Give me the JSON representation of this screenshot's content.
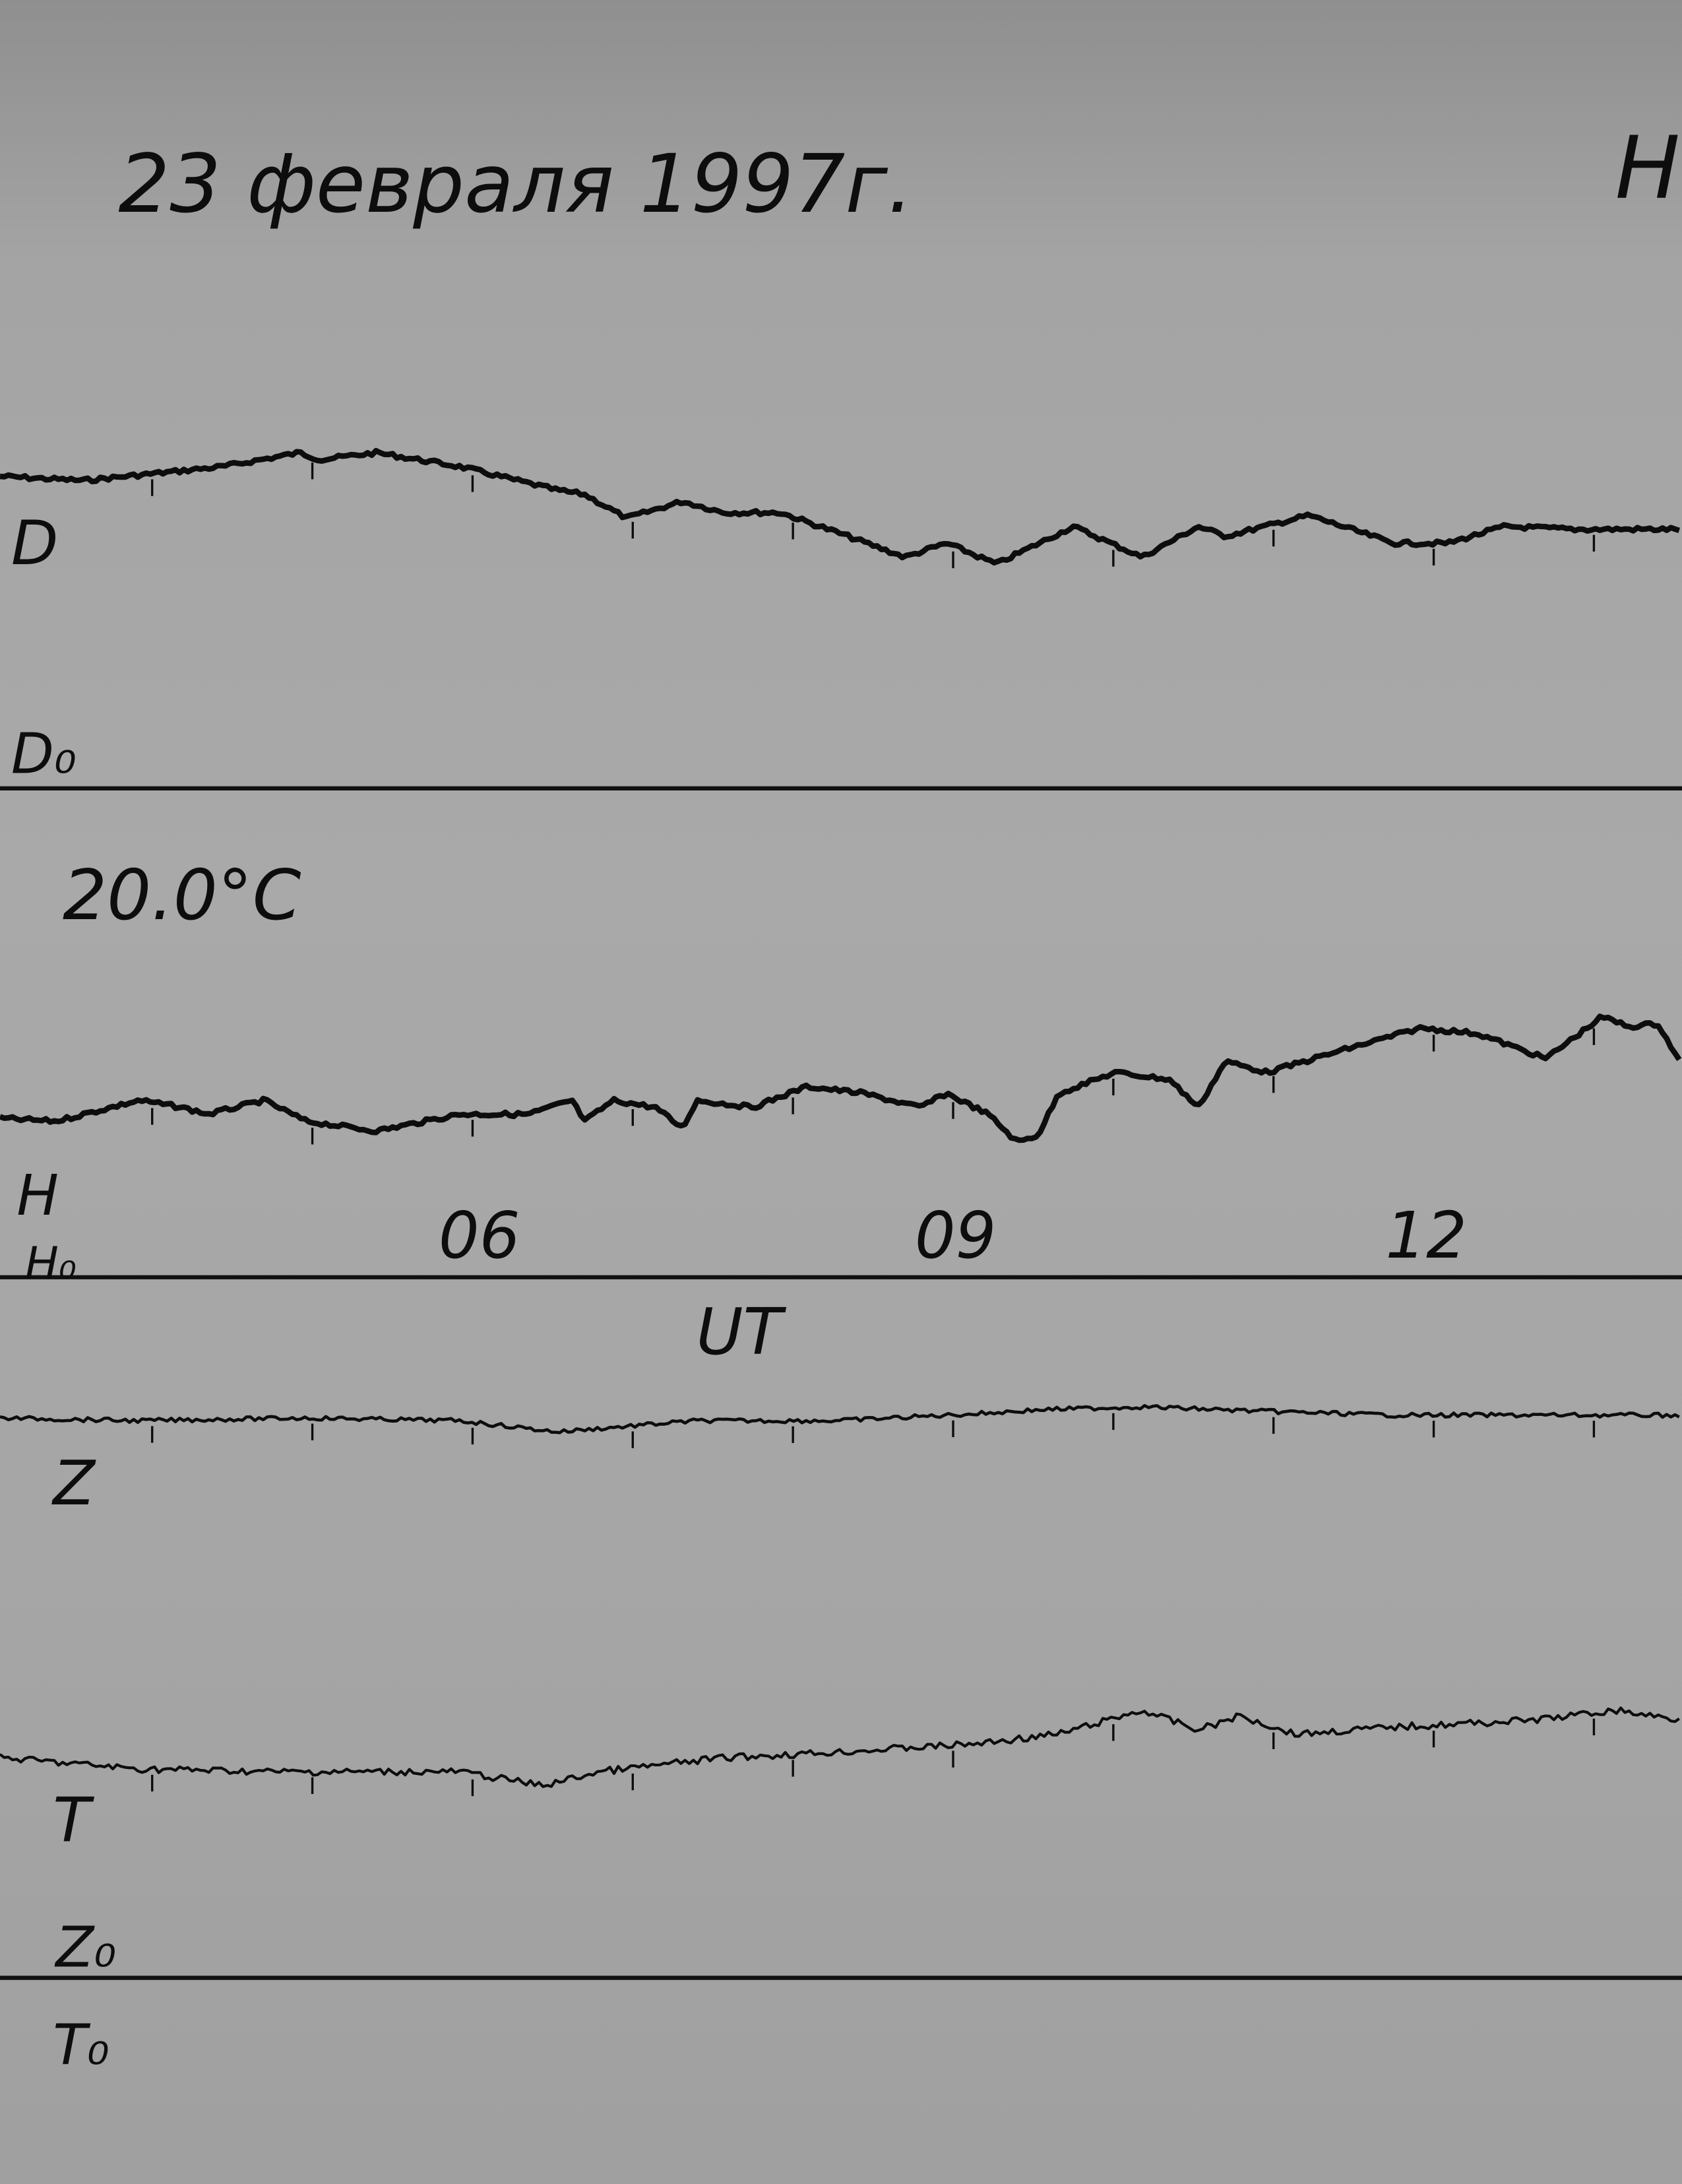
{
  "title": "23 февраля 1997г.",
  "corner_mark": "Н",
  "temperature": "20.0°C",
  "labels": {
    "D": "D",
    "D0": "D₀",
    "H": "H",
    "H0": "H₀",
    "Z": "Z",
    "T": "T",
    "Z0": "Z₀",
    "T0": "T₀"
  },
  "colors": {
    "paper": "#a6a6a6",
    "ink": "#0d0d0d"
  },
  "chart_data": {
    "type": "line",
    "xlabel": "UT",
    "x_ticks": [
      "06",
      "09",
      "12"
    ],
    "x_tick_values": [
      6,
      9,
      12
    ],
    "xlim": [
      3.05,
      13.55
    ],
    "hour_marks": [
      4,
      5,
      6,
      7,
      8,
      9,
      10,
      11,
      12,
      13
    ],
    "grid": false,
    "series": [
      {
        "name": "D",
        "points": [
          [
            3.05,
            2.8
          ],
          [
            3.57,
            2.5
          ],
          [
            4.01,
            3.0
          ],
          [
            4.44,
            3.5
          ],
          [
            4.92,
            4.5
          ],
          [
            5.05,
            4.0
          ],
          [
            5.4,
            4.5
          ],
          [
            5.92,
            3.5
          ],
          [
            6.53,
            1.8
          ],
          [
            6.7,
            1.5
          ],
          [
            6.96,
            -0.2
          ],
          [
            7.31,
            1.0
          ],
          [
            7.57,
            0.2
          ],
          [
            7.92,
            0.2
          ],
          [
            8.27,
            -1.2
          ],
          [
            8.7,
            -3.0
          ],
          [
            8.96,
            -2.0
          ],
          [
            9.27,
            -3.5
          ],
          [
            9.75,
            -0.8
          ],
          [
            10.18,
            -3.0
          ],
          [
            10.53,
            -0.8
          ],
          [
            10.7,
            -1.5
          ],
          [
            11.22,
            0
          ],
          [
            11.75,
            -2.0
          ],
          [
            12.09,
            -2.0
          ],
          [
            12.44,
            -0.8
          ],
          [
            12.88,
            -1.0
          ],
          [
            13.55,
            -1.0
          ]
        ]
      },
      {
        "name": "H",
        "points": [
          [
            3.05,
            -0.3
          ],
          [
            3.4,
            -0.5
          ],
          [
            3.92,
            1.0
          ],
          [
            4.18,
            0.5
          ],
          [
            4.35,
            0
          ],
          [
            4.7,
            1.0
          ],
          [
            4.96,
            -0.5
          ],
          [
            5.4,
            -1.2
          ],
          [
            5.92,
            0
          ],
          [
            6.35,
            0
          ],
          [
            6.62,
            1.0
          ],
          [
            6.7,
            -0.5
          ],
          [
            6.88,
            1.0
          ],
          [
            7.14,
            0.5
          ],
          [
            7.31,
            -1.0
          ],
          [
            7.4,
            1.0
          ],
          [
            7.75,
            0.5
          ],
          [
            8.09,
            2.0
          ],
          [
            8.44,
            1.5
          ],
          [
            8.79,
            0.5
          ],
          [
            8.96,
            1.5
          ],
          [
            9.22,
            0
          ],
          [
            9.4,
            -2.0
          ],
          [
            9.53,
            -1.5
          ],
          [
            9.66,
            1.5
          ],
          [
            10.01,
            3.0
          ],
          [
            10.35,
            2.5
          ],
          [
            10.53,
            0.5
          ],
          [
            10.7,
            3.8
          ],
          [
            10.96,
            3.0
          ],
          [
            11.4,
            4.5
          ],
          [
            11.92,
            6.2
          ],
          [
            12.27,
            5.8
          ],
          [
            12.7,
            4.0
          ],
          [
            13.05,
            7.0
          ],
          [
            13.22,
            6.3
          ],
          [
            13.4,
            6.5
          ],
          [
            13.55,
            3.5
          ]
        ]
      },
      {
        "name": "Z",
        "points": [
          [
            3.05,
            0
          ],
          [
            3.92,
            -0.2
          ],
          [
            4.96,
            0
          ],
          [
            5.92,
            -0.2
          ],
          [
            6.53,
            -1.0
          ],
          [
            7.4,
            -0.2
          ],
          [
            8.27,
            -0.2
          ],
          [
            9.14,
            0.3
          ],
          [
            9.57,
            0.6
          ],
          [
            10.18,
            0.8
          ],
          [
            10.88,
            0.5
          ],
          [
            11.75,
            0.2
          ],
          [
            12.62,
            0.2
          ],
          [
            13.55,
            0.2
          ]
        ]
      },
      {
        "name": "T",
        "points": [
          [
            3.05,
            -0.2
          ],
          [
            3.92,
            -1.0
          ],
          [
            4.79,
            -1.2
          ],
          [
            5.92,
            -1.2
          ],
          [
            6.44,
            -2.2
          ],
          [
            6.79,
            -1.2
          ],
          [
            7.57,
            -0.2
          ],
          [
            8.27,
            0.2
          ],
          [
            9.14,
            0.8
          ],
          [
            9.66,
            1.5
          ],
          [
            10.18,
            3.2
          ],
          [
            10.53,
            1.8
          ],
          [
            10.79,
            2.8
          ],
          [
            11.14,
            1.5
          ],
          [
            11.75,
            2.0
          ],
          [
            12.62,
            2.5
          ],
          [
            13.14,
            3.2
          ],
          [
            13.55,
            2.5
          ]
        ]
      }
    ]
  }
}
